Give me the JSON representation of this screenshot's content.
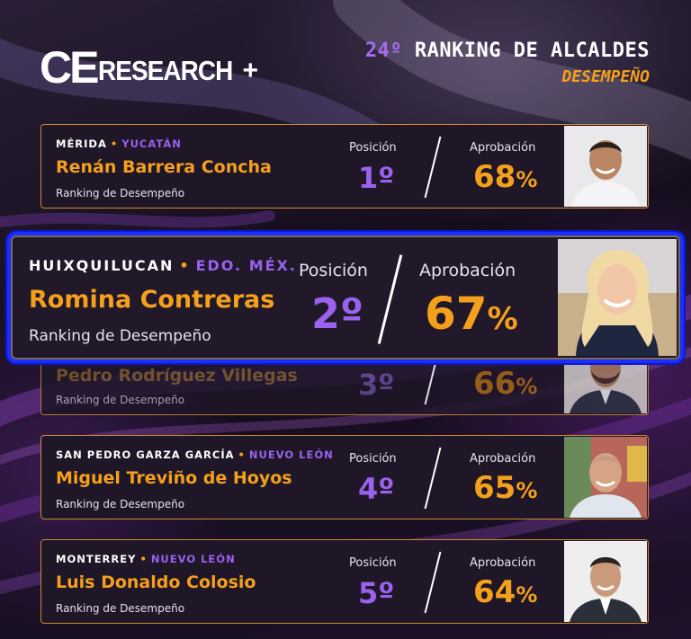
{
  "brand": {
    "logo_ce": "CE",
    "logo_research": "RESEARCH",
    "logo_plus": "+"
  },
  "heading": {
    "ordinal": "24º",
    "title": "RANKING DE ALCALDES",
    "subtitle": "DESEMPEÑO"
  },
  "labels": {
    "position": "Posición",
    "approval": "Aprobación",
    "ranking": "Ranking de Desempeño",
    "percent": "%"
  },
  "colors": {
    "accent_orange": "#f4a01c",
    "accent_purple": "#9a62ee",
    "highlight_blue": "#1a2eff"
  },
  "entries": [
    {
      "city": "MÉRIDA",
      "state": "YUCATÁN",
      "name": "Renán Barrera Concha",
      "position": "1º",
      "approval": "68"
    },
    {
      "city": "HUIXQUILUCAN",
      "state": "EDO. MÉX.",
      "name": "Romina Contreras",
      "position": "2º",
      "approval": "67"
    },
    {
      "city": "",
      "state": "",
      "name": "Pedro Rodríguez Villegas",
      "position": "3º",
      "approval": "66"
    },
    {
      "city": "SAN PEDRO GARZA GARCÍA",
      "state": "NUEVO LEÓN",
      "name": "Miguel Treviño de Hoyos",
      "position": "4º",
      "approval": "65"
    },
    {
      "city": "MONTERREY",
      "state": "NUEVO LEÓN",
      "name": "Luis Donaldo Colosio",
      "position": "5º",
      "approval": "64"
    }
  ]
}
